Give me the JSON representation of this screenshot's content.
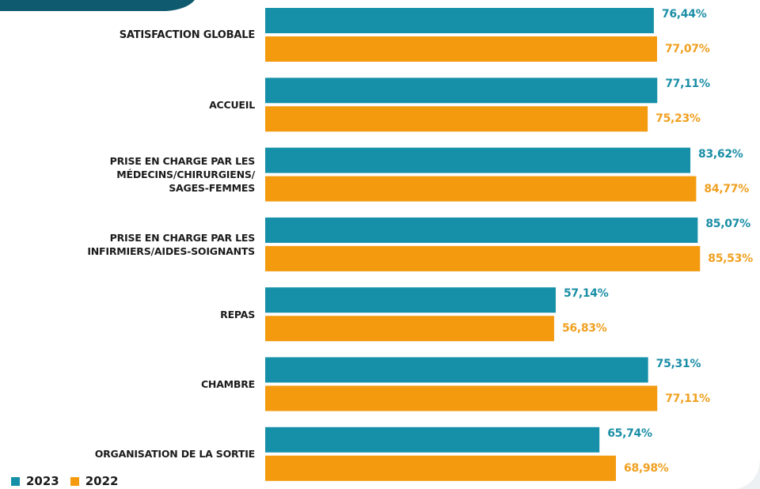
{
  "chart_data": {
    "type": "barh",
    "categories": [
      "SATISFACTION GLOBALE",
      "ACCUEIL",
      "PRISE EN CHARGE PAR LES\nMÉDECINS/CHIRURGIENS/\nSAGES-FEMMES",
      "PRISE EN CHARGE PAR LES\nINFIRMIERS/AIDES-SOIGNANTS",
      "REPAS",
      "CHAMBRE",
      "ORGANISATION DE LA SORTIE"
    ],
    "series": [
      {
        "name": "2023",
        "color": "#1690a8",
        "label_color": "#1a8ea6",
        "values": [
          76.44,
          77.11,
          83.62,
          85.07,
          57.14,
          75.31,
          65.74
        ],
        "value_labels": [
          "76,44%",
          "77,11%",
          "83,62%",
          "85,07%",
          "57,14%",
          "75,31%",
          "65,74%"
        ]
      },
      {
        "name": "2022",
        "color": "#f39a0f",
        "label_color": "#f0a020",
        "values": [
          77.07,
          75.23,
          84.77,
          85.53,
          56.83,
          77.11,
          68.98
        ],
        "value_labels": [
          "77,07%",
          "75,23%",
          "84,77%",
          "85,53%",
          "56,83%",
          "77,11%",
          "68,98%"
        ]
      }
    ],
    "xlim": [
      0,
      90
    ]
  }
}
